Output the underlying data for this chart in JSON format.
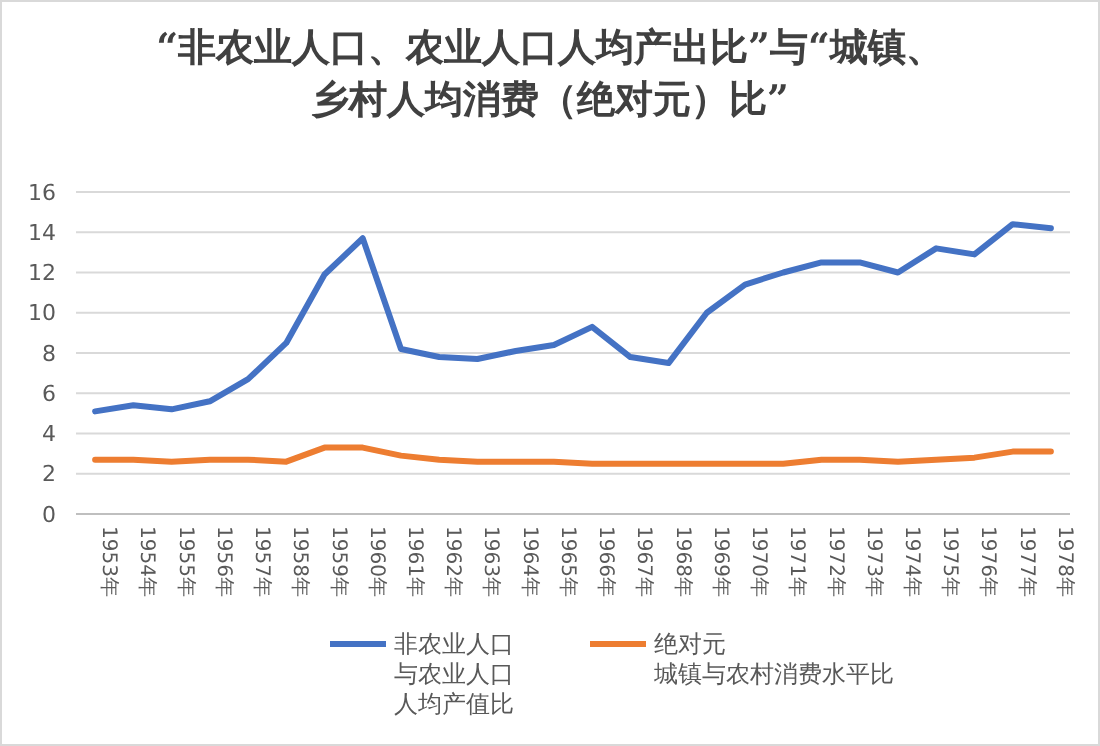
{
  "chart_data": {
    "type": "line",
    "title": "“非农业人口、农业人口人均产出比”与“城镇、乡村人均消费（绝对元）比”",
    "categories": [
      "1953年",
      "1954年",
      "1955年",
      "1956年",
      "1957年",
      "1958年",
      "1959年",
      "1960年",
      "1961年",
      "1962年",
      "1963年",
      "1964年",
      "1965年",
      "1966年",
      "1967年",
      "1968年",
      "1969年",
      "1970年",
      "1971年",
      "1972年",
      "1973年",
      "1974年",
      "1975年",
      "1976年",
      "1977年",
      "1978年"
    ],
    "series": [
      {
        "name": "非农业人口与农业人口人均产值比",
        "color": "#4472c4",
        "values": [
          5.1,
          5.4,
          5.2,
          5.6,
          6.7,
          8.5,
          11.9,
          13.7,
          8.2,
          7.8,
          7.7,
          8.1,
          8.4,
          9.3,
          7.8,
          7.5,
          10.0,
          11.4,
          12.0,
          12.5,
          12.5,
          12.0,
          13.2,
          12.9,
          14.4,
          14.2
        ]
      },
      {
        "name": "绝对元城镇与农村消费水平比",
        "color": "#ed7d31",
        "values": [
          2.7,
          2.7,
          2.6,
          2.7,
          2.7,
          2.6,
          3.3,
          3.3,
          2.9,
          2.7,
          2.6,
          2.6,
          2.6,
          2.5,
          2.5,
          2.5,
          2.5,
          2.5,
          2.5,
          2.7,
          2.7,
          2.6,
          2.7,
          2.8,
          3.1,
          3.1
        ]
      }
    ],
    "ylim": [
      0,
      16
    ],
    "yticks": [
      0,
      2,
      4,
      6,
      8,
      10,
      12,
      14,
      16
    ],
    "grid": "y",
    "legend": "bottom",
    "marker": "none",
    "line_style": "solid"
  }
}
